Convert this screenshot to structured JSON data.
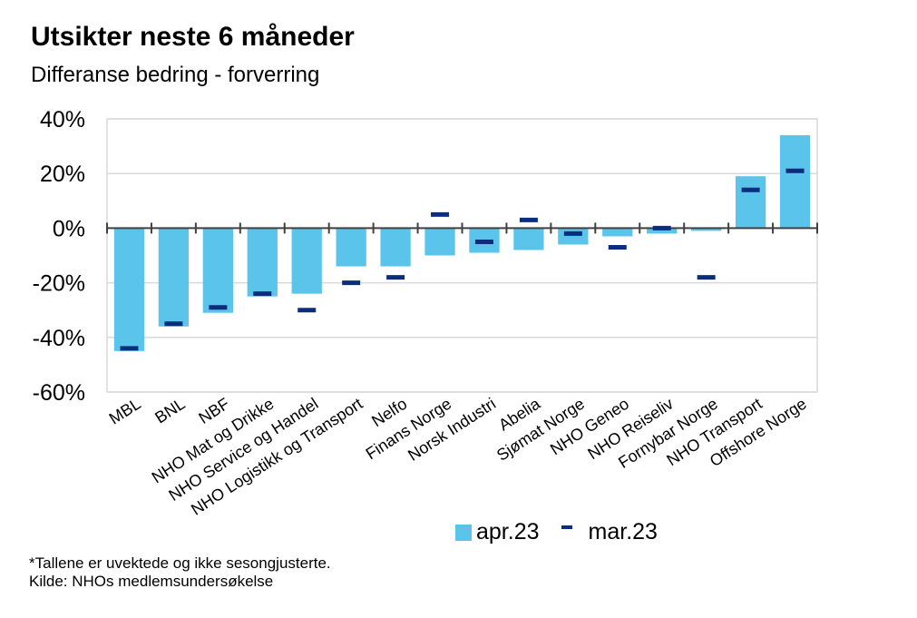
{
  "chart_data": {
    "type": "bar",
    "title": "Utsikter neste 6 måneder",
    "subtitle": "Differanse bedring - forverring",
    "categories": [
      "MBL",
      "BNL",
      "NBF",
      "NHO Mat og Drikke",
      "NHO Service og Handel",
      "NHO Logistikk og Transport",
      "Nelfo",
      "Finans Norge",
      "Norsk Industri",
      "Abelia",
      "Sjømat Norge",
      "NHO Geneo",
      "NHO Reiseliv",
      "Fornybar Norge",
      "NHO Transport",
      "Offshore Norge"
    ],
    "series": [
      {
        "name": "apr.23",
        "style": "bar",
        "color": "#5bc4ea",
        "values": [
          -45,
          -36,
          -31,
          -25,
          -24,
          -14,
          -14,
          -10,
          -9,
          -8,
          -6,
          -3,
          -2,
          -1,
          19,
          34
        ]
      },
      {
        "name": "mar.23",
        "style": "dash",
        "color": "#0b2d7d",
        "values": [
          -44,
          -35,
          -29,
          -24,
          -30,
          -20,
          -18,
          5,
          -5,
          3,
          -2,
          -7,
          0,
          -18,
          14,
          21
        ]
      }
    ],
    "ylim": [
      -60,
      40
    ],
    "yticks": [
      40,
      20,
      0,
      -20,
      -40,
      -60
    ],
    "ytick_labels": [
      "40%",
      "20%",
      "0%",
      "-20%",
      "-40%",
      "-60%"
    ],
    "xlabel": "",
    "ylabel": "",
    "grid": true,
    "legend_position": "bottom"
  },
  "footnote": {
    "line1": "*Tallene er uvektede og ikke sesongjusterte.",
    "line2": "Kilde: NHOs medlemsundersøkelse"
  }
}
